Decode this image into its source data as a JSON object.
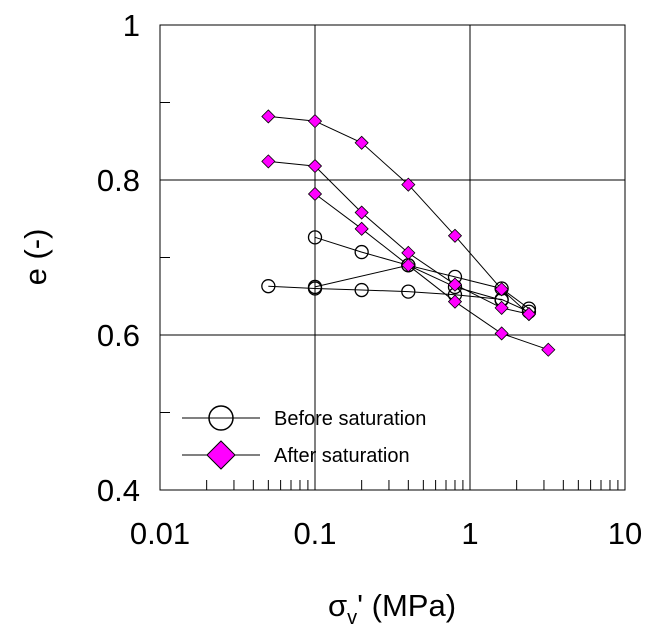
{
  "chart_data": {
    "type": "scatter",
    "title": "",
    "xlabel": {
      "symbol": "σ",
      "subscript": "v",
      "suffix": "' (MPa)"
    },
    "ylabel": "e (-)",
    "x_scale": "log",
    "xlim": [
      0.01,
      10
    ],
    "ylim": [
      0.4,
      1.0
    ],
    "x_major_ticks": [
      0.01,
      0.1,
      1,
      10
    ],
    "x_tick_labels": [
      "0.01",
      "0.1",
      "1",
      "10"
    ],
    "y_major_ticks": [
      0.4,
      0.6,
      0.8,
      1.0
    ],
    "y_tick_labels": [
      "0.4",
      "0.6",
      "0.8",
      "1"
    ],
    "y_minor_ticks": [
      0.5,
      0.7,
      0.9
    ],
    "grid": true,
    "legend": {
      "placement": "lower-left",
      "entries": [
        "Before saturation",
        "After saturation"
      ]
    },
    "series": [
      {
        "name": "Before saturation",
        "marker": "circle-open",
        "color": "#000000",
        "paths": [
          {
            "x": [
              0.05,
              0.1,
              0.2,
              0.4,
              0.8,
              1.6,
              2.4
            ],
            "y": [
              0.663,
              0.66,
              0.658,
              0.656,
              0.652,
              0.646,
              0.63
            ]
          },
          {
            "x": [
              0.1,
              0.2,
              0.4,
              0.8,
              1.6,
              2.4
            ],
            "y": [
              0.726,
              0.707,
              0.69,
              0.675,
              0.66,
              0.634
            ]
          },
          {
            "x": [
              0.1,
              0.4,
              0.8,
              1.6
            ],
            "y": [
              0.662,
              0.69,
              0.662,
              0.645
            ]
          }
        ]
      },
      {
        "name": "After saturation",
        "marker": "diamond-filled",
        "color": "#ff00ff",
        "paths": [
          {
            "x": [
              0.05,
              0.1,
              0.2,
              0.4,
              0.8,
              1.6,
              2.4
            ],
            "y": [
              0.882,
              0.876,
              0.848,
              0.794,
              0.728,
              0.659,
              0.627
            ]
          },
          {
            "x": [
              0.05,
              0.1,
              0.2,
              0.4,
              0.8,
              1.6,
              2.4
            ],
            "y": [
              0.824,
              0.818,
              0.758,
              0.706,
              0.665,
              0.635,
              0.627
            ]
          },
          {
            "x": [
              0.1,
              0.2,
              0.4,
              0.8,
              1.6,
              3.2
            ],
            "y": [
              0.782,
              0.737,
              0.69,
              0.643,
              0.602,
              0.581
            ]
          }
        ]
      }
    ]
  }
}
